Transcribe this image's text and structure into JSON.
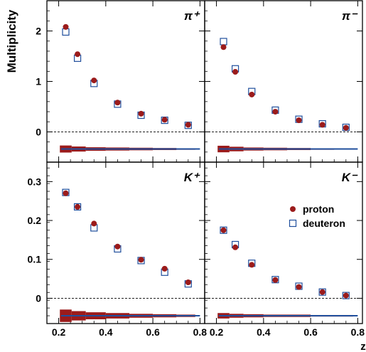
{
  "figure": {
    "ylabel": "Multiplicity",
    "xlabel": "z",
    "colors": {
      "proton": "#9b1b1b",
      "deuteron": "#1f4e9c",
      "systematic_line": "#1f4e9c",
      "zero_line": "#000000"
    }
  },
  "chart_data": [
    {
      "type": "scatter",
      "panel_label": "π⁺",
      "xlabel": "z",
      "ylabel": "Multiplicity",
      "xlim": [
        0.15,
        0.82
      ],
      "ylim": [
        -0.6,
        2.6
      ],
      "yticks": [
        0,
        1,
        2
      ],
      "legend": "none",
      "series": [
        {
          "name": "proton",
          "marker": "filled-circle",
          "x": [
            0.23,
            0.28,
            0.35,
            0.45,
            0.55,
            0.65,
            0.75
          ],
          "values": [
            2.08,
            1.54,
            1.02,
            0.58,
            0.36,
            0.24,
            0.14
          ]
        },
        {
          "name": "deuteron",
          "marker": "open-square",
          "x": [
            0.23,
            0.28,
            0.35,
            0.45,
            0.55,
            0.65,
            0.75
          ],
          "values": [
            1.98,
            1.46,
            0.96,
            0.55,
            0.33,
            0.23,
            0.13
          ]
        }
      ],
      "systematic_band": {
        "y_center": -0.34,
        "x": [
          0.23,
          0.28,
          0.35,
          0.45,
          0.55,
          0.65,
          0.75
        ],
        "half_height": [
          0.07,
          0.05,
          0.035,
          0.03,
          0.025,
          0.02,
          0.015
        ]
      }
    },
    {
      "type": "scatter",
      "panel_label": "π⁻",
      "xlabel": "z",
      "ylabel": "Multiplicity",
      "xlim": [
        0.15,
        0.82
      ],
      "ylim": [
        -0.6,
        2.6
      ],
      "yticks": [
        0,
        1,
        2
      ],
      "legend": "none",
      "series": [
        {
          "name": "proton",
          "marker": "filled-circle",
          "x": [
            0.23,
            0.28,
            0.35,
            0.45,
            0.55,
            0.65,
            0.75
          ],
          "values": [
            1.68,
            1.19,
            0.74,
            0.4,
            0.23,
            0.14,
            0.08
          ]
        },
        {
          "name": "deuteron",
          "marker": "open-square",
          "x": [
            0.23,
            0.28,
            0.35,
            0.45,
            0.55,
            0.65,
            0.75
          ],
          "values": [
            1.79,
            1.25,
            0.8,
            0.43,
            0.25,
            0.16,
            0.09
          ]
        }
      ],
      "systematic_band": {
        "y_center": -0.34,
        "x": [
          0.23,
          0.28,
          0.35,
          0.45,
          0.55,
          0.65,
          0.75
        ],
        "half_height": [
          0.065,
          0.045,
          0.03,
          0.025,
          0.02,
          0.015,
          0.012
        ]
      }
    },
    {
      "type": "scatter",
      "panel_label": "K⁺",
      "xlabel": "z",
      "ylabel": "Multiplicity",
      "xlim": [
        0.15,
        0.82
      ],
      "ylim": [
        -0.065,
        0.35
      ],
      "yticks": [
        0,
        0.1,
        0.2,
        0.3
      ],
      "legend": "none",
      "series": [
        {
          "name": "proton",
          "marker": "filled-circle",
          "x": [
            0.23,
            0.28,
            0.35,
            0.45,
            0.55,
            0.65,
            0.75
          ],
          "values": [
            0.27,
            0.235,
            0.192,
            0.133,
            0.099,
            0.076,
            0.041
          ]
        },
        {
          "name": "deuteron",
          "marker": "open-square",
          "x": [
            0.23,
            0.28,
            0.35,
            0.45,
            0.55,
            0.65,
            0.75
          ],
          "values": [
            0.272,
            0.235,
            0.181,
            0.127,
            0.097,
            0.067,
            0.037
          ]
        }
      ],
      "systematic_band": {
        "y_center": -0.045,
        "x": [
          0.23,
          0.28,
          0.35,
          0.45,
          0.55,
          0.65,
          0.75
        ],
        "half_height": [
          0.016,
          0.012,
          0.009,
          0.007,
          0.005,
          0.004,
          0.003
        ]
      }
    },
    {
      "type": "scatter",
      "panel_label": "K⁻",
      "xlabel": "z",
      "ylabel": "Multiplicity",
      "xlim": [
        0.15,
        0.82
      ],
      "ylim": [
        -0.065,
        0.35
      ],
      "yticks": [
        0,
        0.1,
        0.2,
        0.3
      ],
      "legend": "top-right",
      "legend_entries": [
        "proton",
        "deuteron"
      ],
      "series": [
        {
          "name": "proton",
          "marker": "filled-circle",
          "x": [
            0.23,
            0.28,
            0.35,
            0.45,
            0.55,
            0.65,
            0.75
          ],
          "values": [
            0.175,
            0.131,
            0.086,
            0.047,
            0.029,
            0.016,
            0.007
          ]
        },
        {
          "name": "deuteron",
          "marker": "open-square",
          "x": [
            0.23,
            0.28,
            0.35,
            0.45,
            0.55,
            0.65,
            0.75
          ],
          "values": [
            0.175,
            0.138,
            0.09,
            0.048,
            0.031,
            0.016,
            0.007
          ]
        }
      ],
      "systematic_band": {
        "y_center": -0.045,
        "x": [
          0.23,
          0.28,
          0.35,
          0.45,
          0.55,
          0.65,
          0.75
        ],
        "half_height": [
          0.007,
          0.005,
          0.004,
          0.003,
          0.003,
          0.002,
          0.002
        ]
      }
    }
  ]
}
